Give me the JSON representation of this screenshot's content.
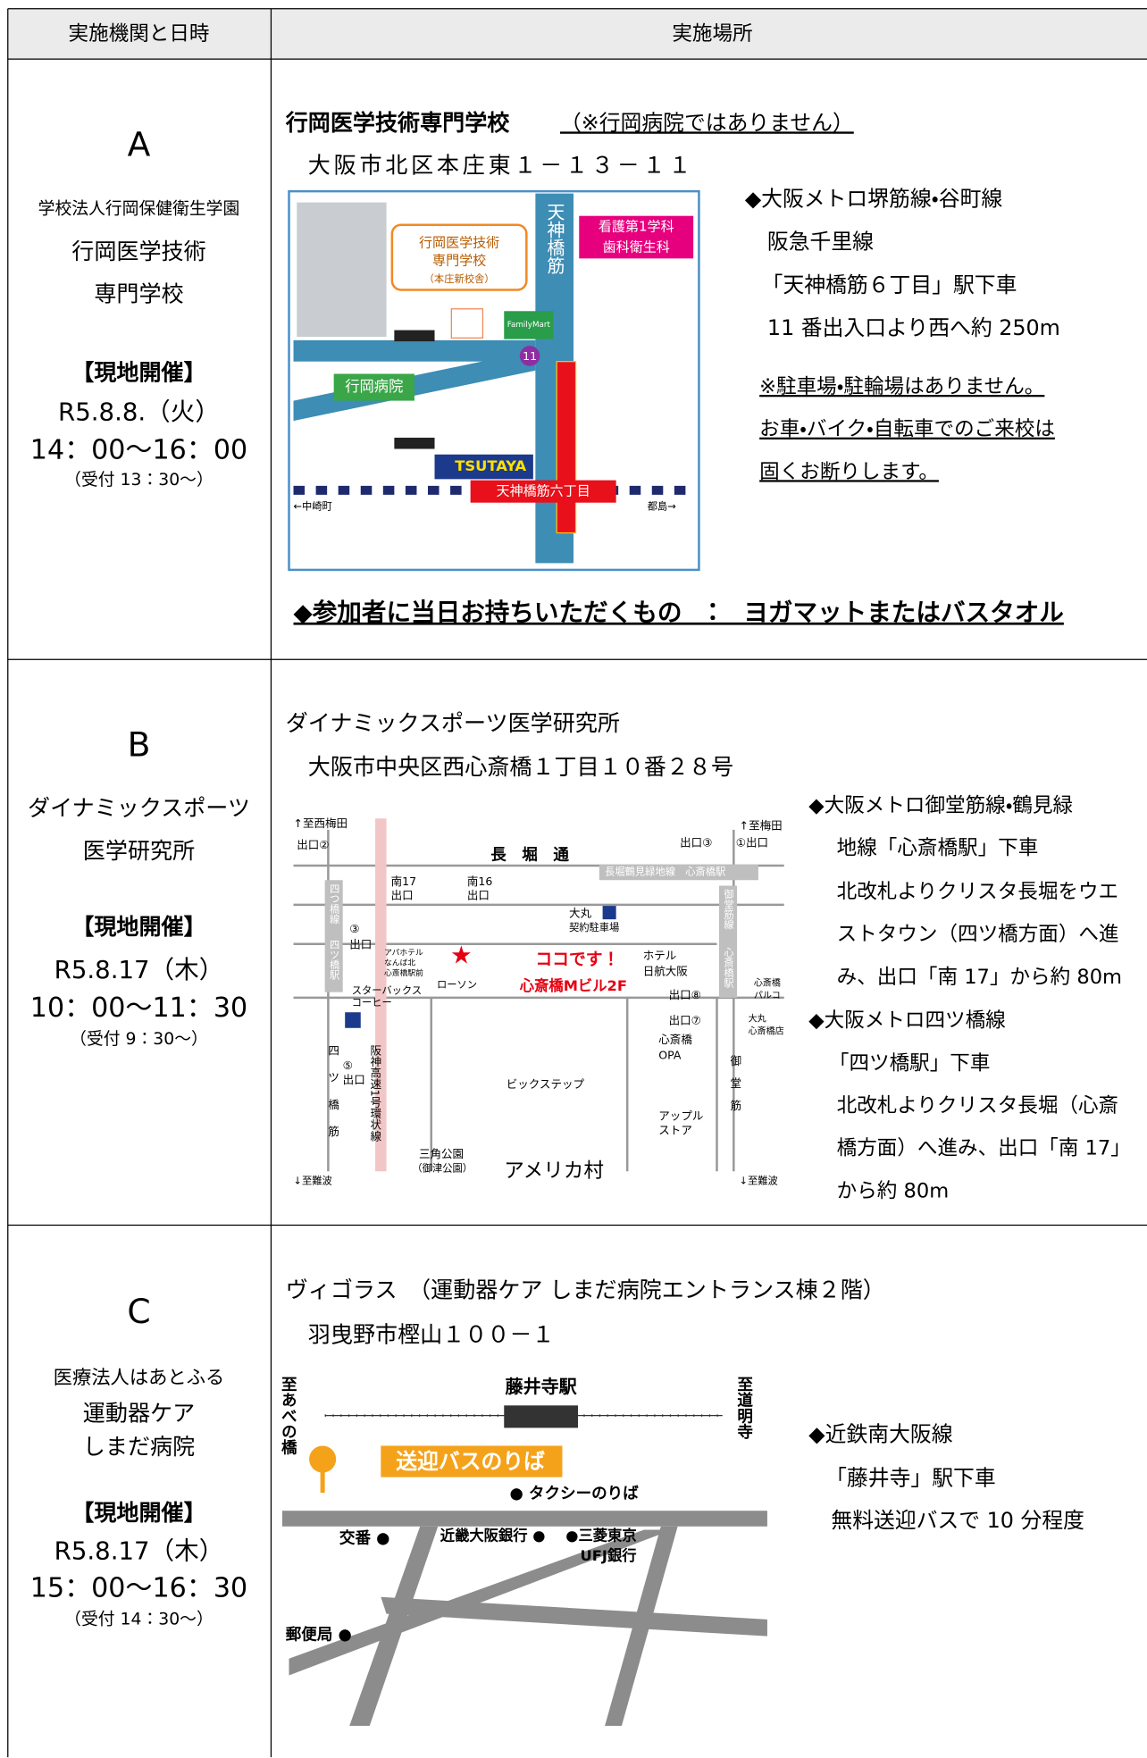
{
  "header": {
    "col1": "実施機関と日時",
    "col2": "実施場所"
  },
  "rows": [
    {
      "label": "A",
      "org": [
        "学校法人行岡保健衛生学園",
        "行岡医学技術",
        "専門学校"
      ],
      "mode": "【現地開催】",
      "date": "R5.8.8.（火）",
      "time": "14：00～16：00",
      "reception": "（受付 13：30～）",
      "venue": "行岡医学技術専門学校",
      "venue_note": "（※行岡病院ではありません）",
      "address": "大阪市北区本庄東１－１３－１１",
      "access": [
        "◆大阪メトロ堺筋線・谷町線",
        "阪急千里線",
        "「天神橋筋６丁目」駅下車",
        "11 番出入口より西へ約 250m"
      ],
      "notes": [
        "※駐車場・駐輪場はありません。",
        "お車・バイク・自転車でのご来校は",
        "固くお断りします。"
      ],
      "bring": "◆参加者に当日お持ちいただくもの　：　ヨガマットまたはバスタオル",
      "map_labels": [
        "天神橋筋",
        "看護第1学科",
        "歯科衛生科",
        "行岡医学技術",
        "専門学校",
        "（本庄新校舎）",
        "FamilyMart",
        "行岡病院",
        "TSUTAYA",
        "天神橋筋六丁目",
        "←中崎町",
        "都島→",
        "11"
      ]
    },
    {
      "label": "B",
      "org": [
        "ダイナミックスポーツ",
        "医学研究所"
      ],
      "mode": "【現地開催】",
      "date": "R5.8.17（木）",
      "time": "10：00～11：30",
      "reception": "（受付 9：30～）",
      "venue": "ダイナミックスポーツ医学研究所",
      "address": "大阪市中央区西心斎橋１丁目１０番２８号",
      "access": [
        "◆大阪メトロ御堂筋線・鶴見緑",
        "地線「心斎橋駅」下車",
        "北改札よりクリスタ長堀をウエ",
        "ストタウン（四ツ橋方面）へ進",
        "み、出口「南 17」から約 80m",
        "◆大阪メトロ四ツ橋線",
        "「四ツ橋駅」下車",
        "北改札よりクリスタ長堀（心斎",
        "橋方面）へ進み、出口「南 17」",
        "から約 80m"
      ],
      "map_labels": [
        "↑至西梅田",
        "出口②",
        "長　堀　通",
        "出口③",
        "①出口",
        "↑至梅田",
        "長堀鶴見緑地線　心斎橋駅",
        "南17",
        "出口",
        "南16",
        "出口",
        "四つ橋線",
        "四ツ橋駅",
        "③",
        "出口",
        "御堂筋線",
        "心斎橋駅",
        "大丸",
        "契約駐車場",
        "ココです！",
        "心斎橋Mビル2F",
        "ホテル",
        "日航大阪",
        "出口⑧",
        "心斎橋",
        "パルコ",
        "出口⑦",
        "心斎橋",
        "OPA",
        "大丸",
        "心斎橋店",
        "スターバックス",
        "コーヒー",
        "ローソン",
        "四",
        "ツ",
        "橋",
        "筋",
        "⑤",
        "出口",
        "阪神高速1号環状線",
        "ビックステップ",
        "アップル",
        "ストア",
        "御",
        "堂",
        "筋",
        "三角公園",
        "（御津公園）",
        "アメリカ村",
        "↓至難波",
        "↓至難波",
        "アパホテル",
        "なんば北",
        "心斎橋駅前"
      ]
    },
    {
      "label": "C",
      "org": [
        "医療法人はあとふる",
        "運動器ケア",
        "しまだ病院"
      ],
      "mode": "【現地開催】",
      "date": "R5.8.17（木）",
      "time": "15：00～16：30",
      "reception": "（受付 14：30～）",
      "venue": "ヴィゴラス　（運動器ケア しまだ病院エントランス棟２階）",
      "address": "羽曳野市樫山１００－１",
      "access": [
        "◆近鉄南大阪線",
        "「藤井寺」駅下車",
        "無料送迎バスで 10 分程度"
      ],
      "map_labels": [
        "藤井寺駅",
        "至あべの橋",
        "至道明寺",
        "送迎バスのりば",
        "● タクシーのりば",
        "交番 ●",
        "近畿大阪銀行 ●",
        "●三菱東京",
        "UFJ銀行",
        "郵便局 ●"
      ]
    }
  ]
}
